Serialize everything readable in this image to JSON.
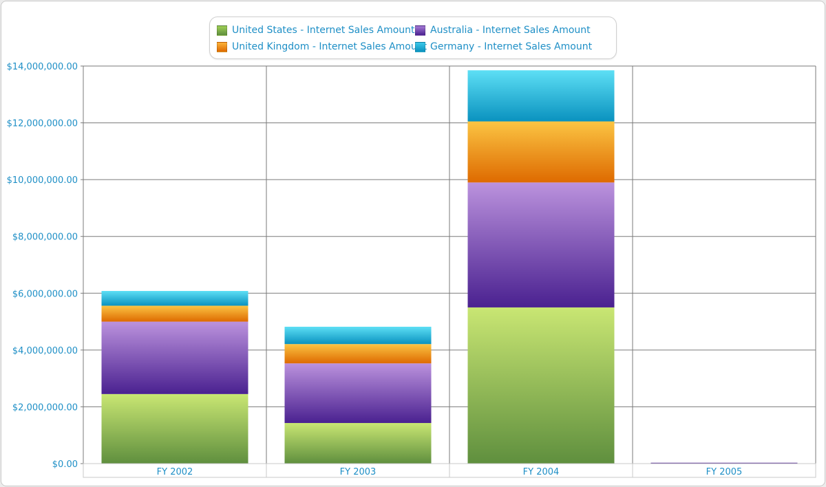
{
  "chart_data": {
    "type": "bar",
    "stacked": true,
    "categories": [
      "FY 2002",
      "FY 2003",
      "FY 2004",
      "FY 2005"
    ],
    "series": [
      {
        "name": "United States - Internet Sales Amount",
        "values": [
          2450000,
          1430000,
          5500000,
          0
        ],
        "color_top": "#c9e673",
        "color_bottom": "#5f8f3e"
      },
      {
        "name": "Australia - Internet Sales Amount",
        "values": [
          2550000,
          2100000,
          4400000,
          0
        ],
        "color_top": "#bb92dd",
        "color_bottom": "#4a2190"
      },
      {
        "name": "United Kingdom - Internet Sales Amount",
        "values": [
          560000,
          680000,
          2150000,
          0
        ],
        "color_top": "#fbc443",
        "color_bottom": "#de6a00"
      },
      {
        "name": "Germany - Internet Sales Amount",
        "values": [
          520000,
          610000,
          1800000,
          0
        ],
        "color_top": "#5ddff5",
        "color_bottom": "#0a92bf"
      }
    ],
    "ylim": [
      0,
      14000000
    ],
    "yticks": [
      0,
      2000000,
      4000000,
      6000000,
      8000000,
      10000000,
      12000000,
      14000000
    ],
    "ytick_labels": [
      "$0.00",
      "$2,000,000.00",
      "$4,000,000.00",
      "$6,000,000.00",
      "$8,000,000.00",
      "$10,000,000.00",
      "$12,000,000.00",
      "$14,000,000.00"
    ],
    "grid": true,
    "legend_position": "top-center",
    "label_color": "#1e8fc6"
  }
}
